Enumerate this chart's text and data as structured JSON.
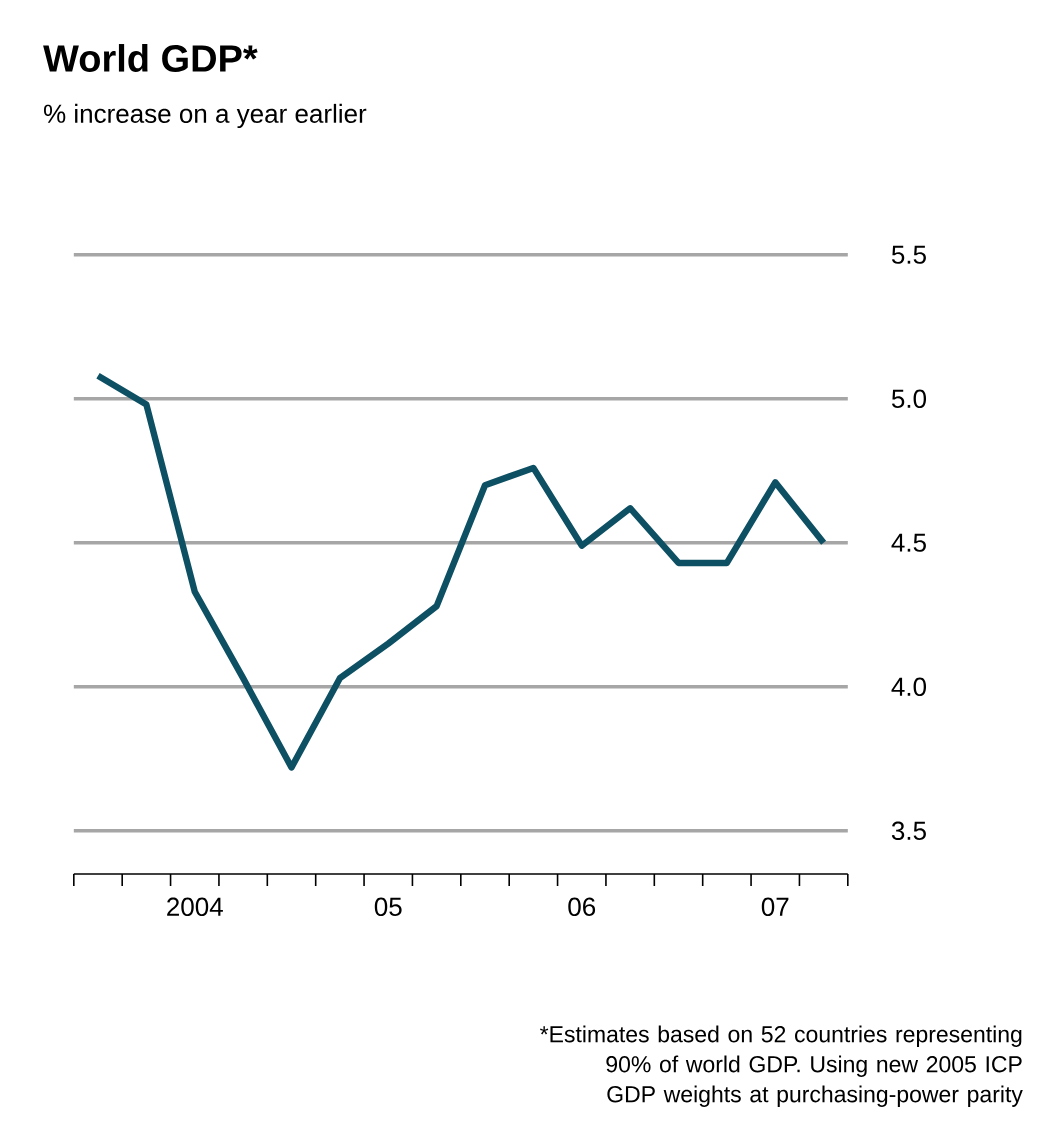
{
  "chart_data": {
    "type": "line",
    "title": "World GDP*",
    "subtitle": "% increase on a year earlier",
    "categories": [
      null,
      null,
      "2004",
      null,
      null,
      null,
      "05",
      null,
      null,
      null,
      "06",
      null,
      null,
      null,
      "07",
      null
    ],
    "series": [
      {
        "color": "#0d4f63",
        "values": [
          5.08,
          4.98,
          4.33,
          4.03,
          3.72,
          4.03,
          4.15,
          4.28,
          4.7,
          4.76,
          4.49,
          4.62,
          4.43,
          4.43,
          4.71,
          4.5
        ]
      }
    ],
    "ylim": [
      3.35,
      5.5
    ],
    "yticks": [
      3.5,
      {
        "value": 4,
        "label": "4.0"
      },
      4.5,
      {
        "value": 5,
        "label": "5.0"
      },
      5.5
    ],
    "grid": "y",
    "marker": "none",
    "line_style": "solid",
    "annotations": [
      "*Estimates based on 52 countries representing 90% of world GDP. Using new 2005 ICP GDP weights at purchasing-power parity"
    ]
  }
}
